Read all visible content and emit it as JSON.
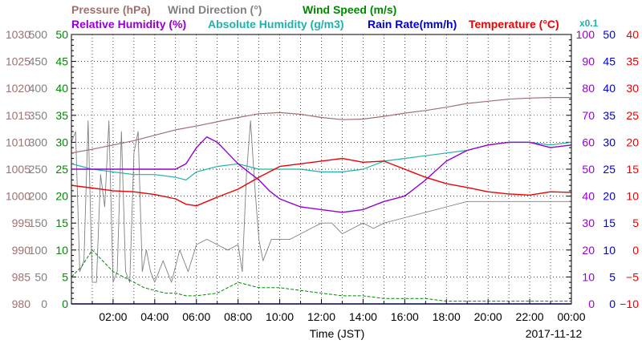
{
  "chart_data": {
    "type": "line",
    "date": "2017-11-12",
    "xlabel": "Time (JST)",
    "x_ticks": [
      "02:00",
      "04:00",
      "06:00",
      "08:00",
      "10:00",
      "12:00",
      "14:00",
      "16:00",
      "18:00",
      "20:00",
      "22:00",
      "00:00"
    ],
    "x_range_hours": [
      0,
      24
    ],
    "grid": true,
    "legend_row1": [
      {
        "key": "pressure",
        "text": "Pressure (hPa)"
      },
      {
        "key": "wind_dir",
        "text": "Wind Direction (°)"
      },
      {
        "key": "wind_speed",
        "text": "Wind Speed (m/s)"
      }
    ],
    "legend_row2": [
      {
        "key": "rh",
        "text": "Relative Humidity (%)"
      },
      {
        "key": "ah",
        "text": "Absolute Humidity (g/m3)"
      },
      {
        "key": "rain",
        "text": "Rain Rate(mm/h)"
      },
      {
        "key": "temp",
        "text": "Temperature (°C)"
      }
    ],
    "ah_multiplier": "x0.1",
    "colors": {
      "pressure": "#a07070",
      "wind_dir": "#808080",
      "wind_speed": "#008800",
      "rh": "#9400d3",
      "ah": "#20b2aa",
      "rain": "#0000cc",
      "temp": "#ee0000"
    },
    "axes": {
      "pressure": {
        "range": [
          980,
          1030
        ],
        "ticks": [
          "1030",
          "1025",
          "1020",
          "1015",
          "1010",
          "1005",
          "1000",
          "995",
          "990",
          "985",
          "980"
        ]
      },
      "wind_dir": {
        "range": [
          0,
          500
        ],
        "ticks": [
          "500",
          "450",
          "400",
          "350",
          "300",
          "250",
          "200",
          "150",
          "100",
          "50",
          "0"
        ]
      },
      "wind_speed": {
        "range": [
          0,
          50
        ],
        "ticks": [
          "50",
          "45",
          "40",
          "35",
          "30",
          "25",
          "20",
          "15",
          "10",
          "5",
          "0"
        ]
      },
      "rh": {
        "range": [
          0,
          100
        ],
        "ticks": [
          "100",
          "90",
          "80",
          "70",
          "60",
          "50",
          "40",
          "30",
          "20",
          "10",
          "0"
        ]
      },
      "rain": {
        "range": [
          0,
          50
        ],
        "ticks": [
          "50",
          "45",
          "40",
          "35",
          "30",
          "25",
          "20",
          "15",
          "10",
          "5",
          "0"
        ]
      },
      "temp": {
        "range": [
          -10,
          40
        ],
        "ticks": [
          "40",
          "35",
          "30",
          "25",
          "20",
          "15",
          "10",
          "5",
          "0",
          "−5",
          "−10"
        ]
      }
    },
    "series": [
      {
        "key": "pressure",
        "axis": "pressure",
        "x": [
          0,
          1,
          2,
          3,
          4,
          5,
          6,
          7,
          8,
          9,
          10,
          11,
          12,
          13,
          14,
          15,
          16,
          17,
          18,
          19,
          20,
          21,
          22,
          23,
          24
        ],
        "y": [
          1008,
          1008.7,
          1009.5,
          1010.3,
          1011.3,
          1012.3,
          1013,
          1013.8,
          1014.6,
          1015.3,
          1015.5,
          1015.2,
          1014.6,
          1014.2,
          1014.3,
          1014.8,
          1015.4,
          1015.9,
          1016.5,
          1017.2,
          1017.6,
          1018,
          1018.2,
          1018.3,
          1018.3
        ]
      },
      {
        "key": "rh",
        "axis": "rh",
        "x": [
          0,
          1,
          2,
          3,
          4,
          5,
          5.5,
          6,
          6.5,
          7,
          7.5,
          8,
          8.5,
          9,
          9.5,
          10,
          11,
          12,
          13,
          14,
          15,
          16,
          17,
          18,
          19,
          20,
          21,
          22,
          23,
          24
        ],
        "y": [
          50,
          50,
          50,
          50,
          50,
          50,
          52,
          58,
          62,
          60,
          56,
          52,
          49,
          46,
          42,
          39,
          36,
          35,
          34,
          35,
          38,
          40,
          46,
          53,
          57,
          59,
          60,
          60,
          58,
          59
        ]
      },
      {
        "key": "ah",
        "axis": "rh",
        "x": [
          0,
          1,
          2,
          3,
          4,
          5,
          5.5,
          6,
          7,
          8,
          9,
          10,
          11,
          12,
          13,
          14,
          15,
          16,
          17,
          18,
          19,
          20,
          21,
          22,
          23,
          24
        ],
        "y": [
          52,
          50,
          49,
          48,
          48,
          47,
          46,
          49,
          51,
          52,
          50,
          50,
          50,
          49,
          49,
          50,
          53,
          54,
          55,
          56,
          57,
          59,
          60,
          60,
          59,
          60
        ]
      },
      {
        "key": "temp",
        "axis": "temp",
        "x": [
          0,
          1,
          2,
          3,
          4,
          5,
          5.5,
          6,
          6.5,
          7,
          8,
          9,
          10,
          11,
          12,
          13,
          14,
          15,
          16,
          17,
          18,
          19,
          20,
          21,
          22,
          23,
          24
        ],
        "y": [
          12,
          11.5,
          11,
          10.8,
          10.3,
          9.5,
          8.5,
          8.2,
          9,
          9.8,
          11.3,
          13.5,
          15.5,
          16,
          16.5,
          17,
          16.3,
          16.5,
          15,
          13.5,
          12.3,
          11.6,
          10.8,
          10.4,
          10.2,
          10.8,
          10.7
        ]
      },
      {
        "key": "wind_dir",
        "axis": "wind_dir",
        "x": [
          0,
          0.2,
          0.4,
          0.6,
          0.8,
          1,
          1.2,
          1.4,
          1.6,
          1.8,
          2,
          2.2,
          2.4,
          2.6,
          2.8,
          3,
          3.2,
          3.4,
          3.6,
          3.8,
          4,
          4.4,
          4.8,
          5.2,
          5.6,
          6,
          6.5,
          7,
          7.5,
          8,
          8.2,
          8.4,
          8.6,
          8.8,
          9,
          9.2,
          9.4,
          9.6,
          10,
          10.5,
          11,
          11.5,
          12,
          12.5,
          13,
          13.5,
          14,
          14.5,
          15,
          16,
          17,
          18,
          19,
          20,
          21,
          22,
          23,
          24
        ],
        "y": [
          300,
          320,
          60,
          80,
          340,
          40,
          40,
          240,
          180,
          340,
          40,
          60,
          320,
          60,
          40,
          280,
          320,
          60,
          100,
          60,
          40,
          80,
          40,
          100,
          60,
          110,
          120,
          110,
          100,
          110,
          60,
          240,
          340,
          220,
          120,
          80,
          100,
          120,
          120,
          120,
          130,
          140,
          150,
          150,
          130,
          140,
          150,
          140,
          150,
          160,
          170,
          180,
          190,
          190,
          190,
          190,
          190,
          190
        ]
      },
      {
        "key": "wind_speed",
        "axis": "wind_speed",
        "x": [
          0,
          0.5,
          1,
          1.5,
          2,
          2.5,
          3,
          3.5,
          4,
          4.5,
          5,
          5.5,
          6,
          7,
          8,
          9,
          10,
          11,
          12,
          13,
          14,
          15,
          16,
          17,
          18,
          19,
          20,
          21,
          22,
          23,
          24
        ],
        "y": [
          5,
          7,
          10,
          8,
          6,
          5,
          4,
          3,
          2.5,
          2,
          2,
          1.5,
          1.5,
          2,
          4,
          3,
          3,
          2.5,
          2,
          1.5,
          1.5,
          1,
          1,
          1,
          0.5,
          0.5,
          0.5,
          0.5,
          0.5,
          0.5,
          0.5
        ]
      },
      {
        "key": "rain",
        "axis": "rain",
        "x": [
          0,
          24
        ],
        "y": [
          0,
          0
        ]
      }
    ]
  }
}
